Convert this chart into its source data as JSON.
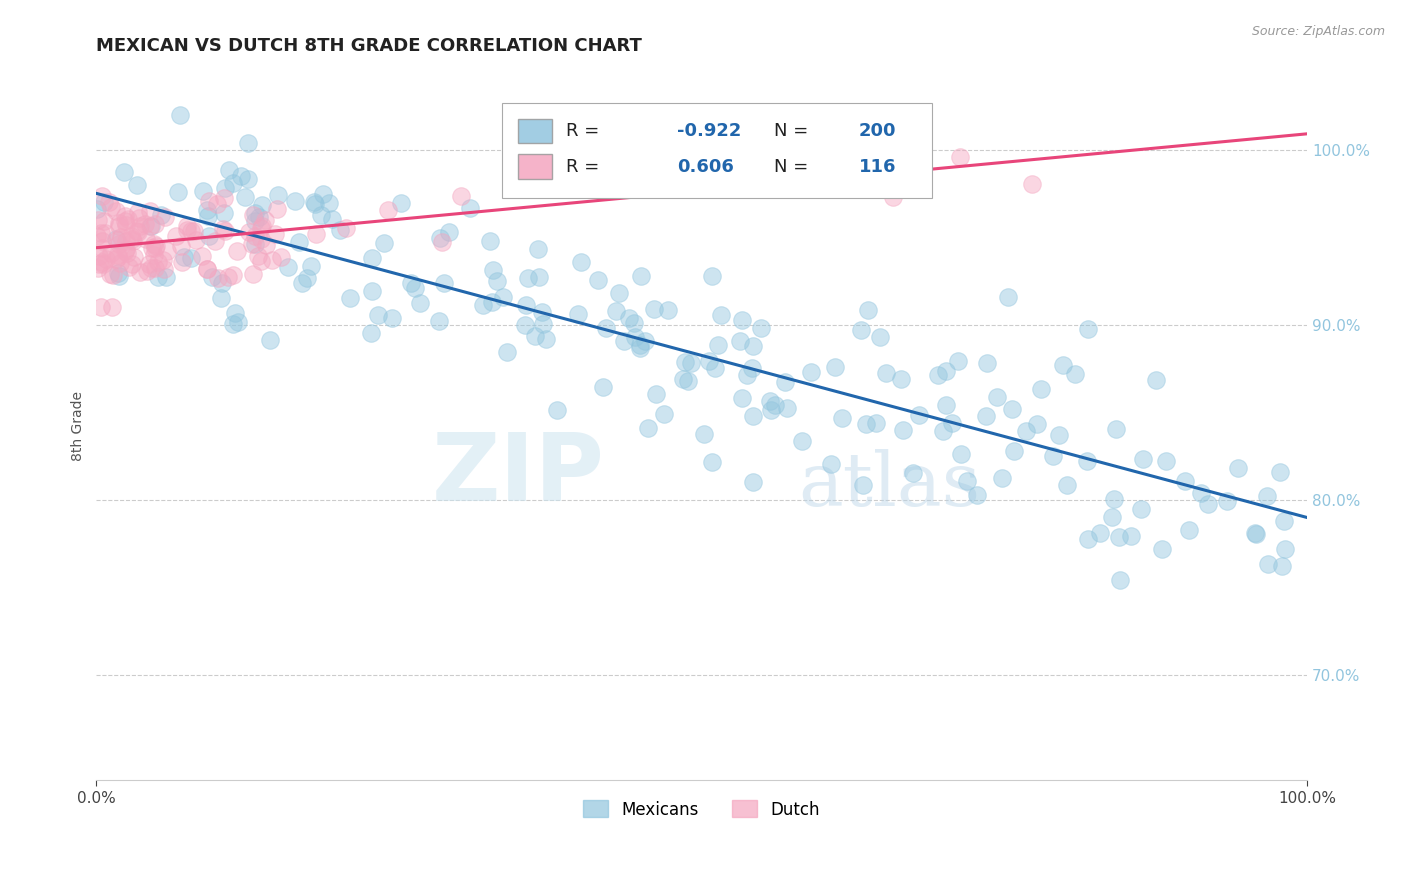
{
  "title": "MEXICAN VS DUTCH 8TH GRADE CORRELATION CHART",
  "source_text": "Source: ZipAtlas.com",
  "ylabel": "8th Grade",
  "xlim": [
    0.0,
    1.0
  ],
  "ylim": [
    0.64,
    1.045
  ],
  "xtick_labels": [
    "0.0%",
    "100.0%"
  ],
  "ytick_labels": [
    "70.0%",
    "80.0%",
    "90.0%",
    "100.0%"
  ],
  "ytick_values": [
    0.7,
    0.8,
    0.9,
    1.0
  ],
  "xtick_values": [
    0.0,
    1.0
  ],
  "blue_color": "#92c5de",
  "pink_color": "#f4a6c0",
  "blue_line_color": "#2166ac",
  "pink_line_color": "#e8457a",
  "R_mexican": -0.922,
  "N_mexican": 200,
  "R_dutch": 0.606,
  "N_dutch": 116,
  "watermark_zip": "ZIP",
  "watermark_atlas": "atlas",
  "title_fontsize": 13,
  "axis_label_fontsize": 10,
  "tick_fontsize": 11,
  "legend_fontsize": 13
}
